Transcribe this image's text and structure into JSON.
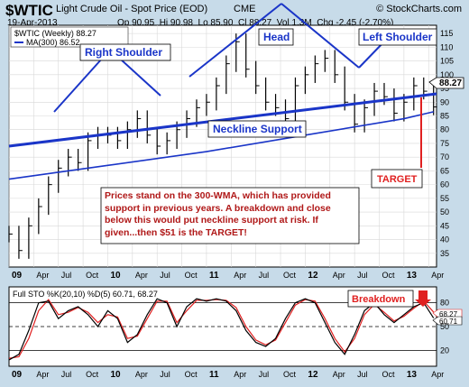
{
  "header": {
    "symbol": "$WTIC",
    "name": "Light Crude Oil - Spot Price (EOD)",
    "exchange": "CME",
    "date": "19-Apr-2013",
    "ohlc": "Op 90.95  Hi 90.98  Lo 85.90  Cl 88.27  Vol 1.3M  Chg -2.45 (-2.70%)",
    "watermark": "© StockCharts.com"
  },
  "colors": {
    "frame": "#c7dbe9",
    "price_bar": "#000000",
    "ma_line": "#1a35c8",
    "trend_line": "#1a35c8",
    "sto_k": "#000000",
    "sto_d": "#e02020",
    "target": "#e02020",
    "note_text": "#b01818",
    "last_price_label": "#000000"
  },
  "chart_data": [
    {
      "type": "line",
      "panel": "price",
      "legend": [
        "$WTIC (Weekly) 88.27",
        "MA(300) 86.52"
      ],
      "last_price_label": "88.27",
      "y_ticks": [
        35,
        40,
        45,
        50,
        55,
        60,
        65,
        70,
        75,
        80,
        85,
        90,
        95,
        100,
        105,
        110,
        115
      ],
      "ylim": [
        30,
        118
      ],
      "x_tick_labels": [
        "09",
        "Apr",
        "Jul",
        "Oct",
        "10",
        "Apr",
        "Jul",
        "Oct",
        "11",
        "Apr",
        "Jul",
        "Oct",
        "12",
        "Apr",
        "Jul",
        "Oct",
        "13",
        "Apr"
      ],
      "x_ticks_years": [
        2009.0,
        2009.25,
        2009.5,
        2009.75,
        2010.0,
        2010.25,
        2010.5,
        2010.75,
        2011.0,
        2011.25,
        2011.5,
        2011.75,
        2012.0,
        2012.25,
        2012.5,
        2012.75,
        2013.0,
        2013.25
      ],
      "xlim": [
        2009.0,
        2013.33
      ],
      "series": [
        {
          "name": "$WTIC (Weekly)",
          "style": "ohlc-close",
          "x": [
            2009.0,
            2009.1,
            2009.2,
            2009.3,
            2009.4,
            2009.5,
            2009.6,
            2009.7,
            2009.8,
            2009.9,
            2010.0,
            2010.1,
            2010.2,
            2010.3,
            2010.4,
            2010.5,
            2010.6,
            2010.7,
            2010.8,
            2010.9,
            2011.0,
            2011.1,
            2011.2,
            2011.3,
            2011.4,
            2011.5,
            2011.6,
            2011.7,
            2011.8,
            2011.9,
            2012.0,
            2012.1,
            2012.2,
            2012.3,
            2012.4,
            2012.5,
            2012.6,
            2012.7,
            2012.8,
            2012.9,
            2013.0,
            2013.1,
            2013.2,
            2013.3
          ],
          "y": [
            42,
            36,
            45,
            52,
            60,
            66,
            70,
            68,
            76,
            78,
            78,
            76,
            80,
            84,
            78,
            74,
            76,
            80,
            84,
            88,
            90,
            96,
            104,
            112,
            102,
            96,
            90,
            88,
            84,
            96,
            100,
            104,
            106,
            100,
            90,
            82,
            88,
            94,
            92,
            86,
            90,
            96,
            94,
            88.27
          ]
        },
        {
          "name": "MA(300)",
          "style": "line",
          "x": [
            2009.0,
            2010.0,
            2011.0,
            2012.0,
            2013.0,
            2013.3
          ],
          "y": [
            62,
            67,
            72,
            78,
            84,
            86.52
          ]
        }
      ],
      "annotations": {
        "labels": [
          "Right Shoulder",
          "Head",
          "Left Shoulder",
          "Neckline Support",
          "TARGET"
        ],
        "note": "Prices stand on the 300-WMA, which has provided support in previous years. A breakdown and close below this would put neckline support at risk. If given...then $51 is the TARGET!",
        "target_value": 51
      }
    },
    {
      "type": "line",
      "panel": "oscillator",
      "legend": "Full STO %K(20,10) %D(5) 60.71, 68.27",
      "annotation": "Breakdown",
      "value_labels": [
        "68.27",
        "60.71"
      ],
      "y_ticks": [
        20,
        50,
        80
      ],
      "ylim": [
        0,
        100
      ],
      "x_tick_labels": [
        "09",
        "Apr",
        "Jul",
        "Oct",
        "10",
        "Apr",
        "Jul",
        "Oct",
        "11",
        "Apr",
        "Jul",
        "Oct",
        "12",
        "Apr",
        "Jul",
        "Oct",
        "13",
        "Apr"
      ],
      "x_ticks_years": [
        2009.0,
        2009.25,
        2009.5,
        2009.75,
        2010.0,
        2010.25,
        2010.5,
        2010.75,
        2011.0,
        2011.25,
        2011.5,
        2011.75,
        2012.0,
        2012.25,
        2012.5,
        2012.75,
        2013.0,
        2013.25
      ],
      "xlim": [
        2009.0,
        2013.33
      ],
      "series": [
        {
          "name": "%K(20,10)",
          "x": [
            2009.0,
            2009.1,
            2009.2,
            2009.3,
            2009.4,
            2009.5,
            2009.6,
            2009.7,
            2009.8,
            2009.9,
            2010.0,
            2010.1,
            2010.2,
            2010.3,
            2010.4,
            2010.5,
            2010.6,
            2010.7,
            2010.8,
            2010.9,
            2011.0,
            2011.1,
            2011.2,
            2011.3,
            2011.4,
            2011.5,
            2011.6,
            2011.7,
            2011.8,
            2011.9,
            2012.0,
            2012.1,
            2012.2,
            2012.3,
            2012.4,
            2012.5,
            2012.6,
            2012.7,
            2012.8,
            2012.9,
            2013.0,
            2013.1,
            2013.2,
            2013.3
          ],
          "y": [
            8,
            15,
            45,
            80,
            82,
            60,
            70,
            75,
            65,
            50,
            70,
            60,
            30,
            40,
            65,
            85,
            80,
            50,
            75,
            85,
            82,
            85,
            82,
            70,
            45,
            30,
            25,
            35,
            60,
            80,
            85,
            80,
            55,
            30,
            15,
            40,
            70,
            80,
            65,
            55,
            65,
            75,
            80,
            60.71
          ]
        },
        {
          "name": "%D(5)",
          "x": [
            2009.0,
            2009.1,
            2009.2,
            2009.3,
            2009.4,
            2009.5,
            2009.6,
            2009.7,
            2009.8,
            2009.9,
            2010.0,
            2010.1,
            2010.2,
            2010.3,
            2010.4,
            2010.5,
            2010.6,
            2010.7,
            2010.8,
            2010.9,
            2011.0,
            2011.1,
            2011.2,
            2011.3,
            2011.4,
            2011.5,
            2011.6,
            2011.7,
            2011.8,
            2011.9,
            2012.0,
            2012.1,
            2012.2,
            2012.3,
            2012.4,
            2012.5,
            2012.6,
            2012.7,
            2012.8,
            2012.9,
            2013.0,
            2013.1,
            2013.2,
            2013.3
          ],
          "y": [
            10,
            12,
            35,
            70,
            84,
            65,
            68,
            74,
            68,
            55,
            65,
            62,
            35,
            38,
            60,
            82,
            82,
            55,
            70,
            83,
            83,
            84,
            83,
            74,
            50,
            33,
            27,
            33,
            55,
            77,
            84,
            82,
            60,
            35,
            18,
            35,
            65,
            78,
            68,
            57,
            63,
            73,
            82,
            68.27
          ]
        }
      ]
    }
  ]
}
